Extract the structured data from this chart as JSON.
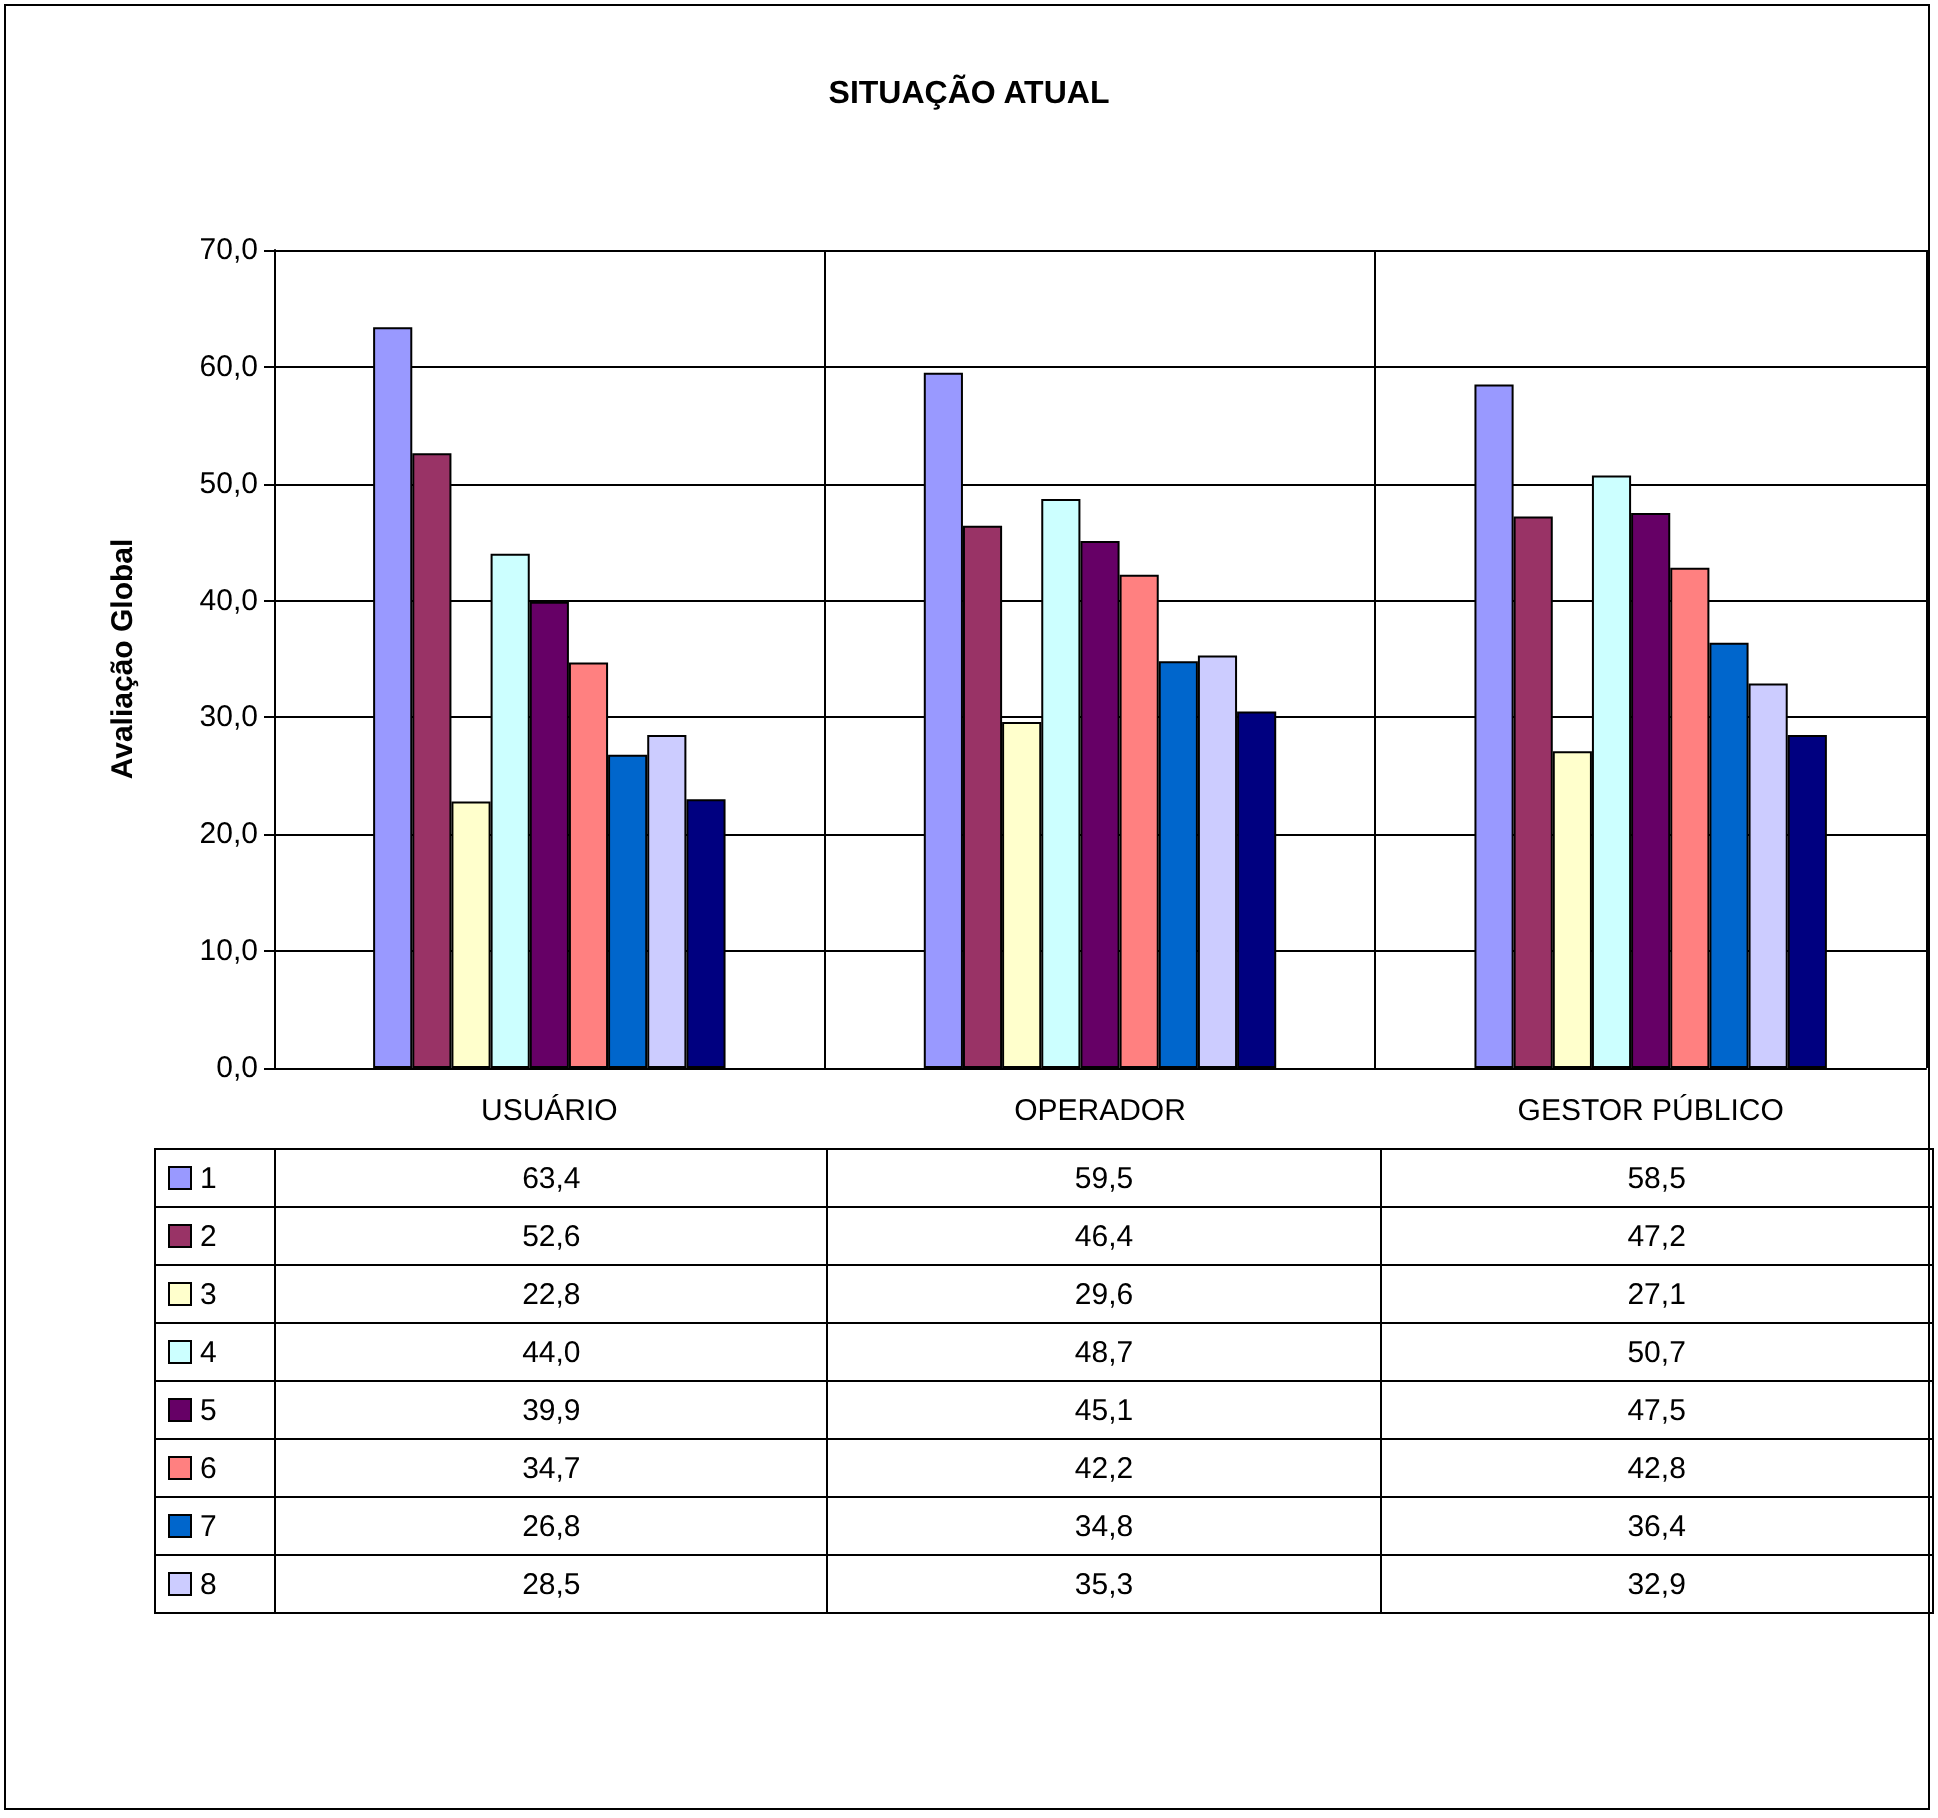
{
  "chart_data": {
    "type": "bar",
    "title": "SITUAÇÃO ATUAL",
    "ylabel": "Avaliação Global",
    "categories": [
      "USUÁRIO",
      "OPERADOR",
      "GESTOR PÚBLICO"
    ],
    "series": [
      {
        "name": "1",
        "color": "#9999ff",
        "values": [
          63.4,
          59.5,
          58.5
        ],
        "value_labels": [
          "63,4",
          "59,5",
          "58,5"
        ]
      },
      {
        "name": "2",
        "color": "#993366",
        "values": [
          52.6,
          46.4,
          47.2
        ],
        "value_labels": [
          "52,6",
          "46,4",
          "47,2"
        ]
      },
      {
        "name": "3",
        "color": "#ffffcc",
        "values": [
          22.8,
          29.6,
          27.1
        ],
        "value_labels": [
          "22,8",
          "29,6",
          "27,1"
        ]
      },
      {
        "name": "4",
        "color": "#ccffff",
        "values": [
          44.0,
          48.7,
          50.7
        ],
        "value_labels": [
          "44,0",
          "48,7",
          "50,7"
        ]
      },
      {
        "name": "5",
        "color": "#660066",
        "values": [
          39.9,
          45.1,
          47.5
        ],
        "value_labels": [
          "39,9",
          "45,1",
          "47,5"
        ]
      },
      {
        "name": "6",
        "color": "#ff8080",
        "values": [
          34.7,
          42.2,
          42.8
        ],
        "value_labels": [
          "34,7",
          "42,2",
          "42,8"
        ]
      },
      {
        "name": "7",
        "color": "#0066cc",
        "values": [
          26.8,
          34.8,
          36.4
        ],
        "value_labels": [
          "26,8",
          "34,8",
          "36,4"
        ]
      },
      {
        "name": "8",
        "color": "#ccccff",
        "values": [
          28.5,
          35.3,
          32.9
        ],
        "value_labels": [
          "28,5",
          "35,3",
          "32,9"
        ]
      },
      {
        "color": "#000080",
        "values": [
          23.0,
          30.5,
          28.5
        ]
      }
    ],
    "ylim": [
      0,
      70
    ],
    "yticks": [
      {
        "value": 0,
        "label": "0,0"
      },
      {
        "value": 10,
        "label": "10,0"
      },
      {
        "value": 20,
        "label": "20,0"
      },
      {
        "value": 30,
        "label": "30,0"
      },
      {
        "value": 40,
        "label": "40,0"
      },
      {
        "value": 50,
        "label": "50,0"
      },
      {
        "value": 60,
        "label": "60,0"
      },
      {
        "value": 70,
        "label": "70,0"
      }
    ],
    "grid": true,
    "legend": "bottom"
  }
}
